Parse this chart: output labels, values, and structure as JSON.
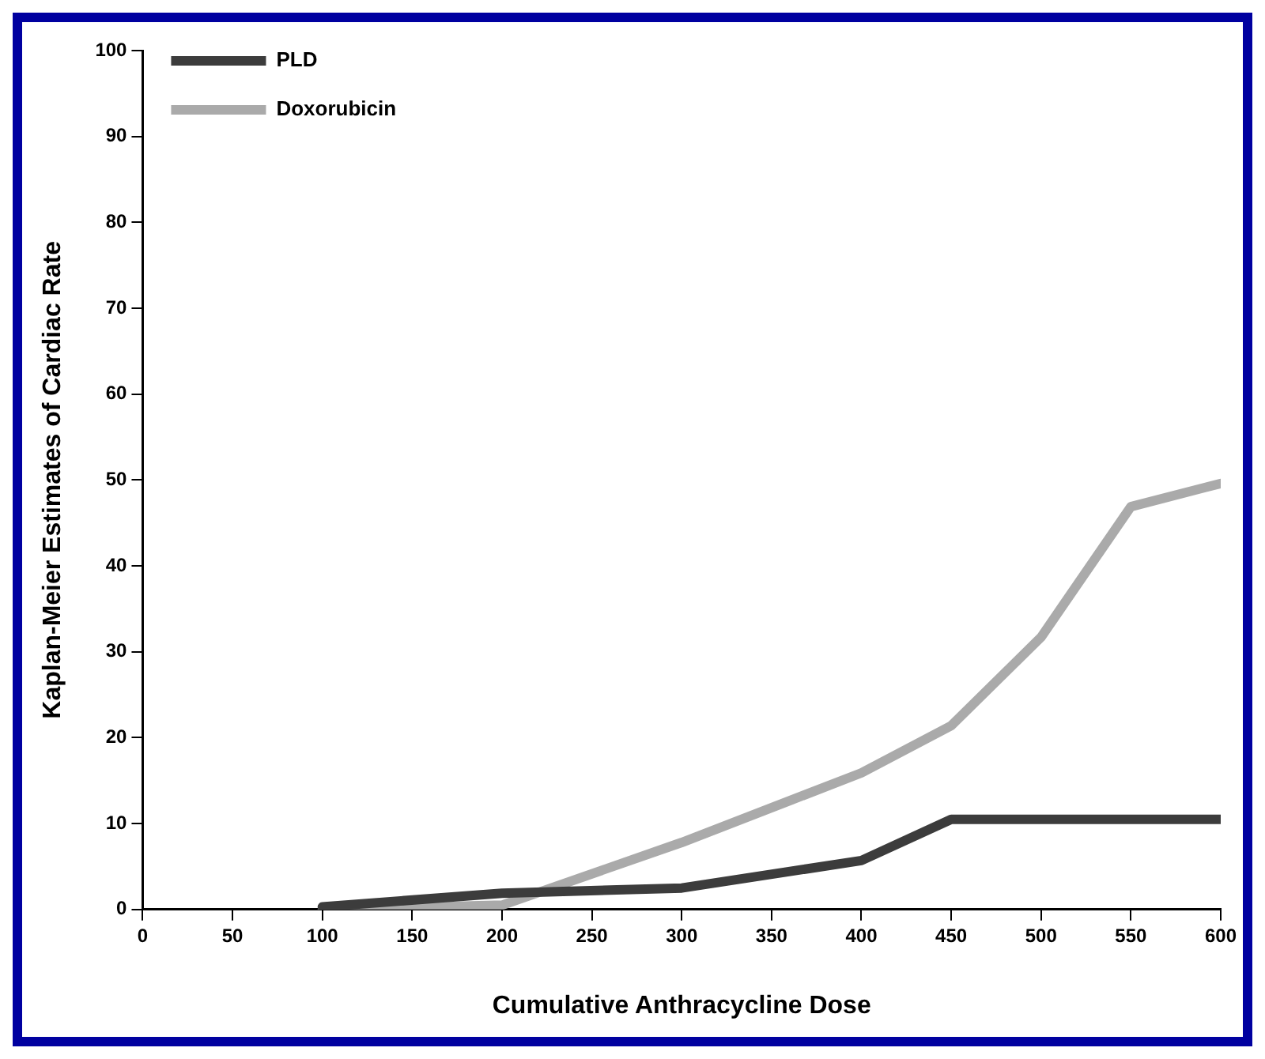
{
  "chart_data": {
    "type": "line",
    "xlabel": "Cumulative Anthracycline Dose",
    "ylabel": "Kaplan-Meier Estimates of Cardiac Rate",
    "x": [
      100,
      200,
      300,
      400,
      450,
      500,
      550,
      600
    ],
    "series": [
      {
        "name": "PLD",
        "color": "#3c3c3c",
        "values": [
          0.3,
          1.9,
          2.5,
          5.7,
          10.5,
          10.5,
          10.5,
          10.5
        ]
      },
      {
        "name": "Doxorubicin",
        "color": "#aaaaaa",
        "values": [
          0,
          0.5,
          7.8,
          15.9,
          21.4,
          31.7,
          46.9,
          49.6
        ]
      }
    ],
    "xlim": [
      0,
      600
    ],
    "xticks": [
      0,
      50,
      100,
      150,
      200,
      250,
      300,
      350,
      400,
      450,
      500,
      550,
      600
    ],
    "ylim": [
      0,
      100
    ],
    "yticks": [
      0,
      10,
      20,
      30,
      40,
      50,
      60,
      70,
      80,
      90,
      100
    ],
    "grid": false,
    "legend": "top left",
    "marker": "none",
    "line_style": "solid"
  }
}
